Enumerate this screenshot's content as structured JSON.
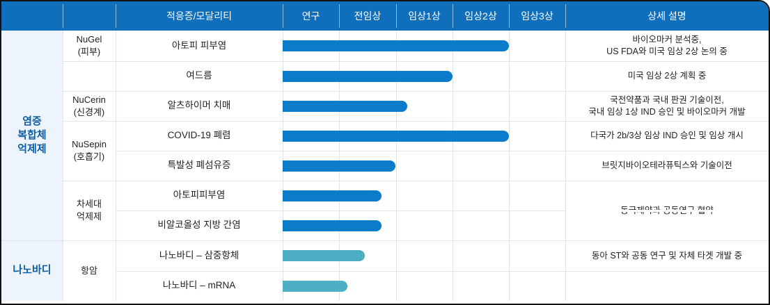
{
  "header": {
    "indication": "적응증/모달리티",
    "stages": [
      "연구",
      "전임상",
      "임상1상",
      "임상2상",
      "임상3상"
    ],
    "details": "상세 설명"
  },
  "colors": {
    "header_bg": "#0f6fbd",
    "bar_main": "#0a7cc9",
    "bar_nano": "#4eaec3",
    "group_bg": "#eef4fb"
  },
  "groups": [
    {
      "label": "염증\n복합체\n억제제"
    },
    {
      "label": "나노바디"
    }
  ],
  "platforms": [
    {
      "label": "NuGel\n(피부)"
    },
    {
      "label": ""
    },
    {
      "label": "NuCerin\n(신경계)"
    },
    {
      "label": "NuSepin\n(호흡기)"
    },
    {
      "label": "차세대\n억제제"
    },
    {
      "label": "항암"
    }
  ],
  "rows": [
    {
      "indication": "아토피 피부염",
      "progress": 0.8,
      "style": "main"
    },
    {
      "indication": "여드름",
      "progress": 0.6,
      "style": "main"
    },
    {
      "indication": "알츠하이머 치매",
      "progress": 0.44,
      "style": "main"
    },
    {
      "indication": "COVID-19 폐렴",
      "progress": 0.8,
      "style": "main"
    },
    {
      "indication": "특발성 폐섬유증",
      "progress": 0.4,
      "style": "main"
    },
    {
      "indication": "아토피피부염",
      "progress": 0.35,
      "style": "main"
    },
    {
      "indication": "비알코올성 지방 간염",
      "progress": 0.35,
      "style": "main"
    },
    {
      "indication": "나노바디 – 삼중항체",
      "progress": 0.29,
      "style": "nano"
    },
    {
      "indication": "나노바디 – mRNA",
      "progress": 0.23,
      "style": "nano"
    }
  ],
  "descriptions": [
    "바이오마커 분석중,\nUS FDA와 미국 임상 2상 논의 중",
    "미국 임상 2상 계획 중",
    "국전약품과  국내 판권 기술이전,\n국내 임상 1상 IND 승인 및 바이오마커 개발",
    "다국가 2b/3상 임상 IND 승인 및 임상 개시",
    "브릿지바이오테라퓨틱스와 기술이전",
    "동국제약과 공동연구 협약",
    "동아 ST와 공동 연구 및 자체 타겟 개발 중"
  ]
}
